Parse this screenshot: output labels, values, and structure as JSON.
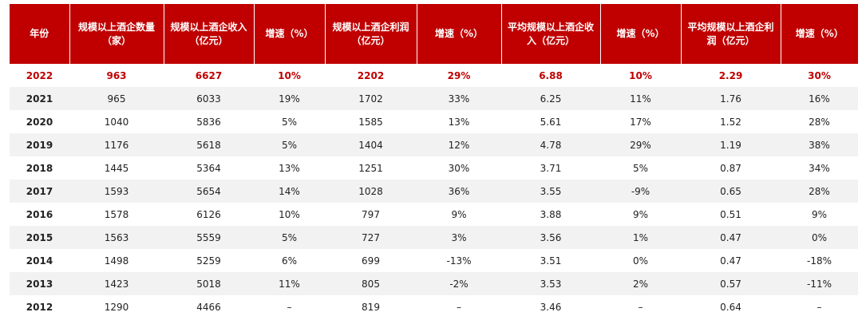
{
  "table": {
    "header": [
      "年份",
      "规模以上酒企数量（家）",
      "规模以上酒企收入（亿元）",
      "增速（%）",
      "规模以上酒企利润（亿元）",
      "增速（%）",
      "平均规模以上酒企收入（亿元）",
      "增速（%）",
      "平均规模以上酒企利润（亿元）",
      "增速（%）"
    ],
    "rows": [
      [
        "2022",
        "963",
        "6627",
        "10%",
        "2202",
        "29%",
        "6.88",
        "10%",
        "2.29",
        "30%"
      ],
      [
        "2021",
        "965",
        "6033",
        "19%",
        "1702",
        "33%",
        "6.25",
        "11%",
        "1.76",
        "16%"
      ],
      [
        "2020",
        "1040",
        "5836",
        "5%",
        "1585",
        "13%",
        "5.61",
        "17%",
        "1.52",
        "28%"
      ],
      [
        "2019",
        "1176",
        "5618",
        "5%",
        "1404",
        "12%",
        "4.78",
        "29%",
        "1.19",
        "38%"
      ],
      [
        "2018",
        "1445",
        "5364",
        "13%",
        "1251",
        "30%",
        "3.71",
        "5%",
        "0.87",
        "34%"
      ],
      [
        "2017",
        "1593",
        "5654",
        "14%",
        "1028",
        "36%",
        "3.55",
        "-9%",
        "0.65",
        "28%"
      ],
      [
        "2016",
        "1578",
        "6126",
        "10%",
        "797",
        "9%",
        "3.88",
        "9%",
        "0.51",
        "9%"
      ],
      [
        "2015",
        "1563",
        "5559",
        "5%",
        "727",
        "3%",
        "3.56",
        "1%",
        "0.47",
        "0%"
      ],
      [
        "2014",
        "1498",
        "5259",
        "6%",
        "699",
        "-13%",
        "3.51",
        "0%",
        "0.47",
        "-18%"
      ],
      [
        "2013",
        "1423",
        "5018",
        "11%",
        "805",
        "-2%",
        "3.53",
        "2%",
        "0.57",
        "-11%"
      ],
      [
        "2012",
        "1290",
        "4466",
        "–",
        "819",
        "–",
        "3.46",
        "–",
        "0.64",
        "–"
      ]
    ]
  }
}
